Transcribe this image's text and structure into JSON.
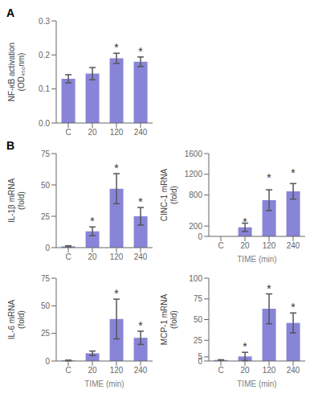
{
  "chart_data": [
    {
      "type": "bar",
      "title": "A",
      "categories": [
        "C",
        "20",
        "120",
        "240"
      ],
      "values": [
        0.13,
        0.145,
        0.19,
        0.18
      ],
      "errors": [
        0.012,
        0.018,
        0.015,
        0.014
      ],
      "annotations": [
        {
          "category": "120",
          "text": "*"
        },
        {
          "category": "240",
          "text": "*"
        }
      ],
      "ylabel": "NF-κB activation\n(OD₄₅₀nm)",
      "ylim": [
        0.0,
        0.3
      ],
      "yticks": [
        {
          "value": 0,
          "label": "0.0"
        },
        0.1,
        0.2,
        0.3
      ],
      "color": "#8884d8"
    },
    {
      "type": "bar",
      "title": "B",
      "categories": [
        "C",
        "20",
        "120",
        "240"
      ],
      "values": [
        1.0,
        13.0,
        47.0,
        25.0
      ],
      "errors": [
        0.5,
        3.5,
        12.0,
        7.0
      ],
      "annotations": [
        {
          "category": "20",
          "text": "*"
        },
        {
          "category": "120",
          "text": "*"
        },
        {
          "category": "240",
          "text": "*"
        }
      ],
      "ylabel": "IL-1β mRNA\n(fold)",
      "ylim": [
        0,
        75
      ],
      "yticks": [
        0,
        25,
        50,
        75
      ],
      "color": "#8884d8"
    },
    {
      "type": "bar",
      "categories": [
        "C",
        "20",
        "120",
        "240"
      ],
      "values": [
        0,
        175,
        700,
        870
      ],
      "errors": [
        0,
        80,
        200,
        150
      ],
      "annotations": [
        {
          "category": "20",
          "text": "*"
        },
        {
          "category": "120",
          "text": "*"
        },
        {
          "category": "240",
          "text": "*"
        }
      ],
      "ylabel": "CINC-1 mRNA\n(fold)",
      "xlabel": "TIME (min)",
      "ylim": [
        0,
        1600
      ],
      "yticks": [
        0,
        200,
        800,
        1200,
        1600
      ],
      "color": "#8884d8"
    },
    {
      "type": "bar",
      "categories": [
        "C",
        "20",
        "120",
        "240"
      ],
      "values": [
        0.5,
        7.0,
        38.0,
        21.0
      ],
      "errors": [
        0.3,
        2.0,
        18.0,
        6.0
      ],
      "annotations": [
        {
          "category": "120",
          "text": "*"
        },
        {
          "category": "240",
          "text": "*"
        }
      ],
      "ylabel": "IL-6 mRNA\n(fold)",
      "xlabel": "TIME (min)",
      "ylim": [
        0,
        75
      ],
      "yticks": [
        0,
        25,
        50,
        75
      ],
      "color": "#8884d8"
    },
    {
      "type": "bar",
      "categories": [
        "C",
        "20",
        "120",
        "240"
      ],
      "values": [
        1.2,
        5.5,
        63.0,
        46.0
      ],
      "errors": [
        0.3,
        5.0,
        18.0,
        12.0
      ],
      "annotations": [
        {
          "category": "20",
          "text": "*"
        },
        {
          "category": "120",
          "text": "*"
        },
        {
          "category": "240",
          "text": "*"
        }
      ],
      "ylabel": "MCP-1 mRNA\n(fold)",
      "xlabel": "TIME (min)",
      "ylim": [
        0,
        100
      ],
      "yticks": [
        0,
        5,
        25,
        50,
        75,
        100
      ],
      "color": "#8884d8"
    }
  ]
}
